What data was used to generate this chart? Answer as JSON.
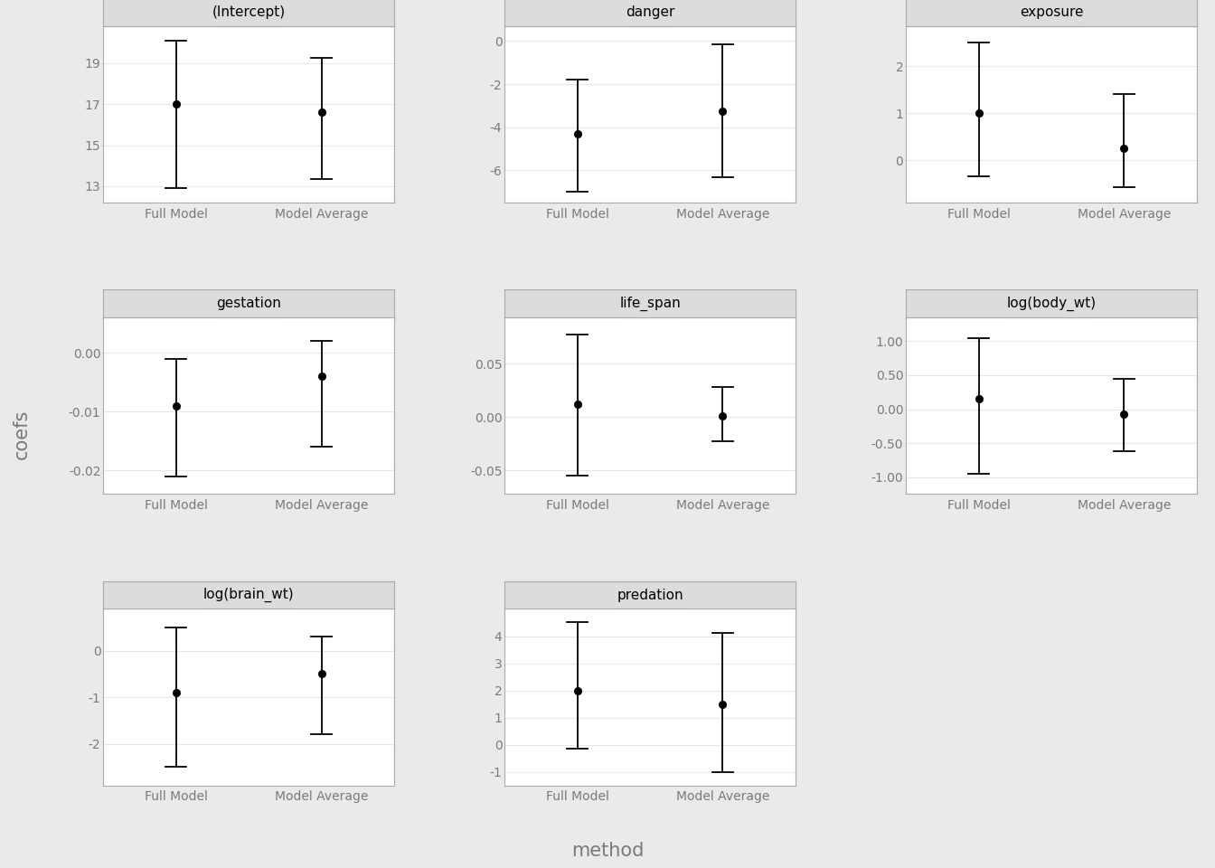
{
  "panels": [
    {
      "title": "(Intercept)",
      "full_model": {
        "est": 17.0,
        "lo": 12.9,
        "hi": 20.1
      },
      "model_avg": {
        "est": 16.6,
        "lo": 13.35,
        "hi": 19.25
      },
      "yticks": [
        13,
        15,
        17,
        19
      ],
      "ylim": [
        12.2,
        20.8
      ]
    },
    {
      "title": "danger",
      "full_model": {
        "est": -4.3,
        "lo": -7.0,
        "hi": -1.8
      },
      "model_avg": {
        "est": -3.25,
        "lo": -6.3,
        "hi": -0.15
      },
      "yticks": [
        0,
        -2,
        -4,
        -6
      ],
      "ylim": [
        -7.5,
        0.7
      ]
    },
    {
      "title": "exposure",
      "full_model": {
        "est": 1.0,
        "lo": -0.35,
        "hi": 2.5
      },
      "model_avg": {
        "est": 0.25,
        "lo": -0.58,
        "hi": 1.4
      },
      "yticks": [
        0,
        1,
        2
      ],
      "ylim": [
        -0.9,
        2.85
      ]
    },
    {
      "title": "gestation",
      "full_model": {
        "est": -0.009,
        "lo": -0.021,
        "hi": -0.001
      },
      "model_avg": {
        "est": -0.004,
        "lo": -0.016,
        "hi": 0.002
      },
      "yticks": [
        0.0,
        -0.01,
        -0.02
      ],
      "ylim": [
        -0.024,
        0.006
      ]
    },
    {
      "title": "life_span",
      "full_model": {
        "est": 0.012,
        "lo": -0.055,
        "hi": 0.077
      },
      "model_avg": {
        "est": 0.001,
        "lo": -0.023,
        "hi": 0.028
      },
      "yticks": [
        0.05,
        0.0,
        -0.05
      ],
      "ylim": [
        -0.072,
        0.093
      ]
    },
    {
      "title": "log(body_wt)",
      "full_model": {
        "est": 0.15,
        "lo": -0.95,
        "hi": 1.05
      },
      "model_avg": {
        "est": -0.07,
        "lo": -0.62,
        "hi": 0.44
      },
      "yticks": [
        1.0,
        0.5,
        0.0,
        -0.5,
        -1.0
      ],
      "ylim": [
        -1.25,
        1.35
      ]
    },
    {
      "title": "log(brain_wt)",
      "full_model": {
        "est": -0.9,
        "lo": -2.5,
        "hi": 0.5
      },
      "model_avg": {
        "est": -0.5,
        "lo": -1.8,
        "hi": 0.3
      },
      "yticks": [
        0,
        -1,
        -2
      ],
      "ylim": [
        -2.9,
        0.9
      ]
    },
    {
      "title": "predation",
      "full_model": {
        "est": 2.0,
        "lo": -0.15,
        "hi": 4.5
      },
      "model_avg": {
        "est": 1.5,
        "lo": -1.0,
        "hi": 4.1
      },
      "yticks": [
        4,
        3,
        2,
        1,
        0,
        -1
      ],
      "ylim": [
        -1.5,
        5.0
      ]
    }
  ],
  "xlabel": "method",
  "ylabel": "coefs",
  "x_labels": [
    "Full Model",
    "Model Average"
  ],
  "x_positions": [
    1,
    2
  ],
  "fig_bg": "#eaeaea",
  "plot_bg": "#ffffff",
  "strip_bg": "#dcdcdc",
  "strip_border": "#aaaaaa",
  "panel_border": "#aaaaaa",
  "grid_color": "#e8e8e8",
  "point_color": "#000000",
  "line_color": "#000000",
  "tick_color": "#7a7a7a",
  "xtick_color": "#7a7a7a",
  "title_color": "#000000",
  "axis_label_color": "#7a7a7a",
  "figsize": [
    13.44,
    9.6
  ],
  "dpi": 100
}
